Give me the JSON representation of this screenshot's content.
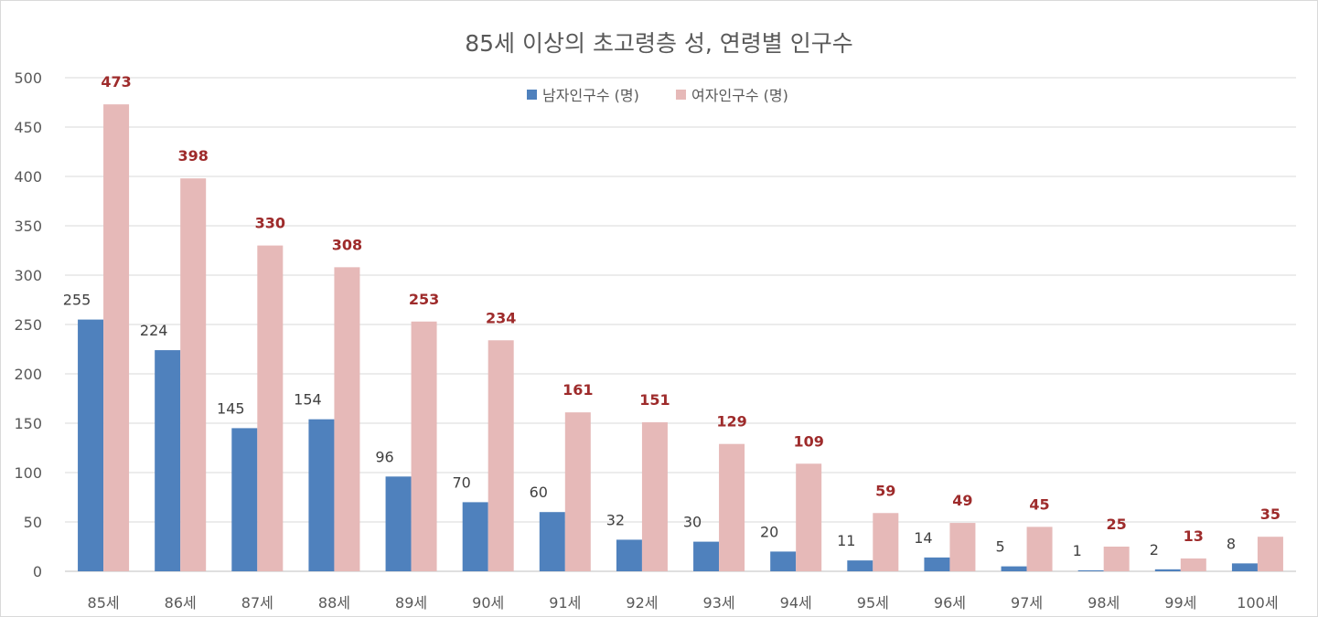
{
  "chart_data": {
    "type": "bar",
    "title": "85세 이상의 초고령층 성, 연령별 인구수",
    "xlabel": "",
    "ylabel": "",
    "categories": [
      "85세",
      "86세",
      "87세",
      "88세",
      "89세",
      "90세",
      "91세",
      "92세",
      "93세",
      "94세",
      "95세",
      "96세",
      "97세",
      "98세",
      "99세",
      "100세"
    ],
    "series": [
      {
        "name": "남자인구수 (명)",
        "color": "#4f81bd",
        "values": [
          255,
          224,
          145,
          154,
          96,
          70,
          60,
          32,
          30,
          20,
          11,
          14,
          5,
          1,
          2,
          8
        ]
      },
      {
        "name": "여자인구수 (명)",
        "color": "#e6b9b8",
        "values": [
          473,
          398,
          330,
          308,
          253,
          234,
          161,
          151,
          129,
          109,
          59,
          49,
          45,
          25,
          13,
          35
        ]
      }
    ],
    "ylim": [
      0,
      500
    ],
    "yticks": [
      0,
      50,
      100,
      150,
      200,
      250,
      300,
      350,
      400,
      450,
      500
    ],
    "grid": true,
    "legend_position": "top-center",
    "label_colors": {
      "male": "#404040",
      "female": "#9e2b2b"
    }
  }
}
